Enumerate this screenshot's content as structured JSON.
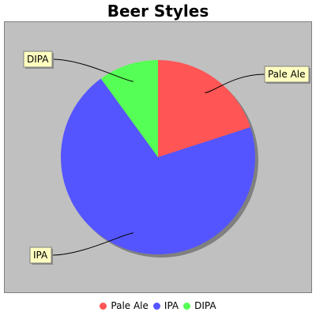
{
  "chart_data": {
    "type": "pie",
    "title": "Beer Styles",
    "labels": [
      "Pale Ale",
      "IPA",
      "DIPA"
    ],
    "values": [
      20,
      70,
      10
    ],
    "colors": [
      "#ff5555",
      "#5555ff",
      "#55ff55"
    ],
    "legend_position": "bottom",
    "background": "#c0c0c0"
  }
}
